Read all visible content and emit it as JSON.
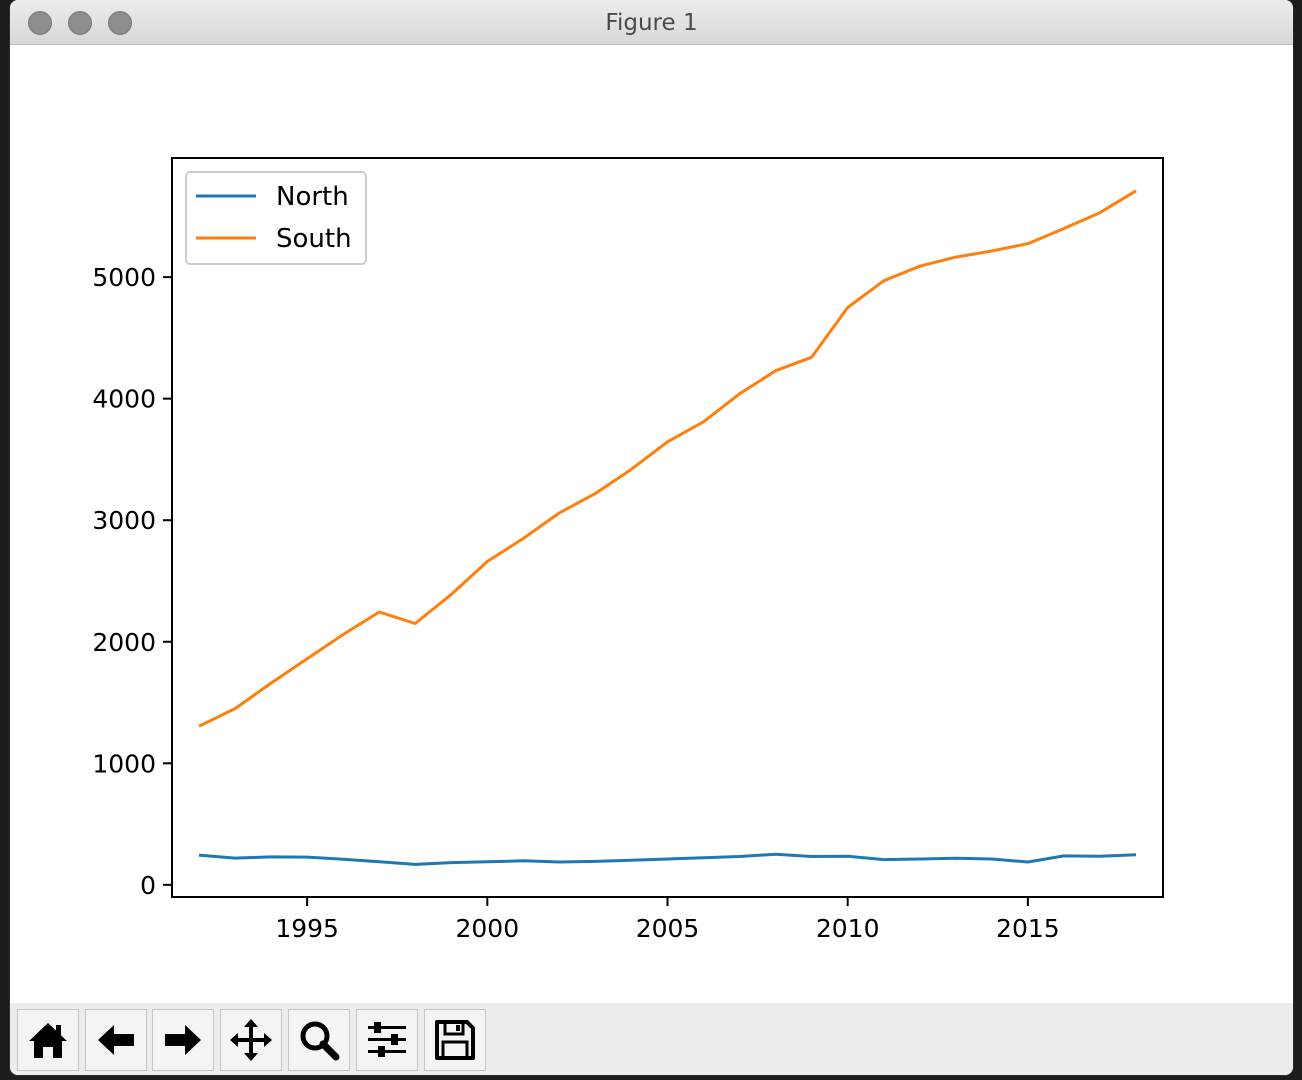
{
  "window": {
    "title": "Figure 1"
  },
  "toolbar": {
    "buttons": [
      {
        "icon": "home-icon"
      },
      {
        "icon": "back-arrow-icon"
      },
      {
        "icon": "forward-arrow-icon"
      },
      {
        "icon": "pan-move-icon"
      },
      {
        "icon": "zoom-magnifier-icon"
      },
      {
        "icon": "configure-subplots-icon"
      },
      {
        "icon": "save-floppy-icon"
      }
    ]
  },
  "chart_data": {
    "type": "line",
    "title": "",
    "xlabel": "",
    "ylabel": "",
    "xlim": [
      1991.25,
      2018.75
    ],
    "ylim": [
      -100,
      5980
    ],
    "x_ticks": [
      1995,
      2000,
      2005,
      2010,
      2015
    ],
    "y_ticks": [
      0,
      1000,
      2000,
      3000,
      4000,
      5000
    ],
    "grid": false,
    "legend": "top-left",
    "x": [
      1992,
      1993,
      1994,
      1995,
      1996,
      1997,
      1998,
      1999,
      2000,
      2001,
      2002,
      2003,
      2004,
      2005,
      2006,
      2007,
      2008,
      2009,
      2010,
      2011,
      2012,
      2013,
      2014,
      2015,
      2016,
      2017,
      2018
    ],
    "series": [
      {
        "name": "North",
        "color": "#1f77b4",
        "values": [
          245,
          220,
          230,
          228,
          210,
          190,
          168,
          183,
          190,
          198,
          188,
          193,
          203,
          213,
          223,
          233,
          252,
          233,
          236,
          208,
          213,
          218,
          213,
          188,
          238,
          235,
          248
        ]
      },
      {
        "name": "South",
        "color": "#ff7f0e",
        "values": [
          1305,
          1450,
          1660,
          1860,
          2060,
          2245,
          2150,
          2390,
          2660,
          2850,
          3060,
          3220,
          3420,
          3645,
          3810,
          4040,
          4230,
          4340,
          4750,
          4970,
          5090,
          5165,
          5215,
          5275,
          5400,
          5530,
          5710
        ]
      }
    ]
  }
}
